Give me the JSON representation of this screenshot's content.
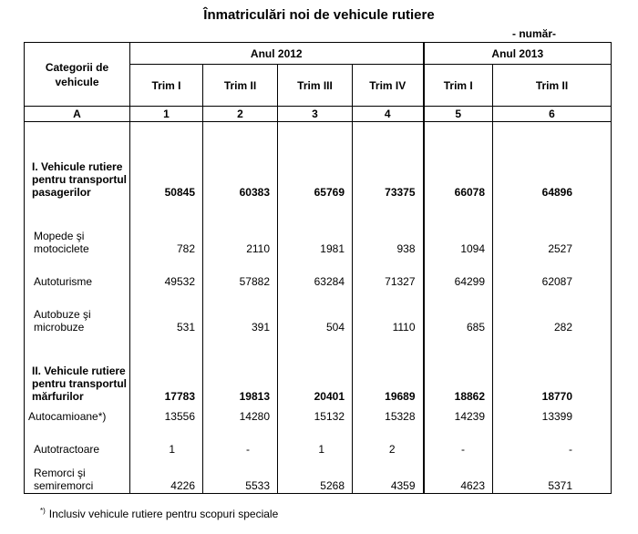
{
  "title": "Înmatriculări noi de vehicule rutiere",
  "unit": "- număr-",
  "header": {
    "category_label": "Categorii de vehicule",
    "year_2012": "Anul 2012",
    "year_2013": "Anul 2013",
    "quarters": [
      "Trim I",
      "Trim II",
      "Trim III",
      "Trim IV",
      "Trim I",
      "Trim II"
    ],
    "col_letter": "A",
    "col_numbers": [
      "1",
      "2",
      "3",
      "4",
      "5",
      "6"
    ]
  },
  "rows": [
    {
      "label": "I. Vehicule rutiere pentru transportul pasagerilor",
      "bold": true,
      "values": [
        "50845",
        "60383",
        "65769",
        "73375",
        "66078",
        "64896"
      ]
    },
    {
      "label": "Mopede şi motociclete",
      "bold": false,
      "values": [
        "782",
        "2110",
        "1981",
        "938",
        "1094",
        "2527"
      ]
    },
    {
      "label": "Autoturisme",
      "bold": false,
      "values": [
        "49532",
        "57882",
        "63284",
        "71327",
        "64299",
        "62087"
      ]
    },
    {
      "label": "Autobuze şi microbuze",
      "bold": false,
      "values": [
        "531",
        "391",
        "504",
        "1110",
        "685",
        "282"
      ]
    },
    {
      "label": "II. Vehicule rutiere pentru transportul mărfurilor",
      "bold": true,
      "values": [
        "17783",
        "19813",
        "20401",
        "19689",
        "18862",
        "18770"
      ]
    },
    {
      "label": "Autocamioane*)",
      "bold": false,
      "values": [
        "13556",
        "14280",
        "15132",
        "15328",
        "14239",
        "13399"
      ]
    },
    {
      "label": "Autotractoare",
      "bold": false,
      "values": [
        "1",
        "-",
        "1",
        "2",
        "-",
        "-"
      ]
    },
    {
      "label": "Remorci şi semiremorci",
      "bold": false,
      "values": [
        "4226",
        "5533",
        "5268",
        "4359",
        "4623",
        "5371"
      ]
    }
  ],
  "footnote": {
    "mark": "*)",
    "text": "Inclusiv vehicule rutiere pentru scopuri speciale"
  }
}
